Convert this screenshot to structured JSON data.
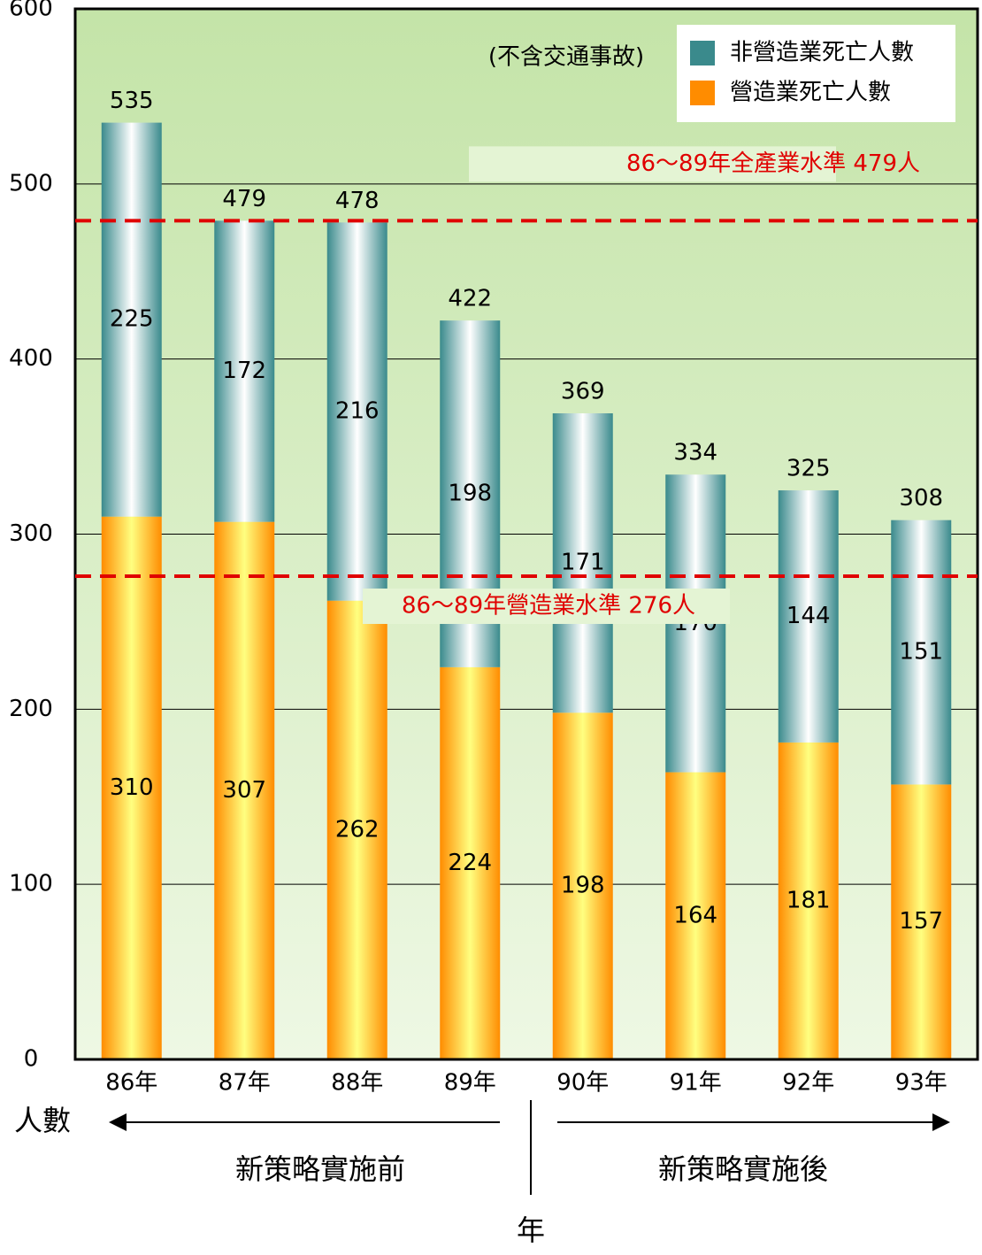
{
  "chart_data": {
    "type": "stacked_bar",
    "annotation": "(不含交通事故)",
    "y_label": "人數",
    "x_label": "年",
    "period_before": "新策略實施前",
    "period_after": "新策略實施後",
    "categories": [
      "86年",
      "87年",
      "88年",
      "89年",
      "90年",
      "91年",
      "92年",
      "93年"
    ],
    "series": [
      {
        "name": "營造業死亡人數",
        "color": "#ff8c00",
        "values": [
          310,
          307,
          262,
          224,
          198,
          164,
          181,
          157
        ]
      },
      {
        "name": "非營造業死亡人數",
        "color": "#3a8a8c",
        "values": [
          225,
          172,
          216,
          198,
          171,
          170,
          144,
          151
        ]
      }
    ],
    "totals": [
      535,
      479,
      478,
      422,
      369,
      334,
      325,
      308
    ],
    "reference_lines": [
      {
        "value": 479,
        "label": "86～89年全產業水準 479人",
        "color": "#e00000"
      },
      {
        "value": 276,
        "label": "86～89年營造業水準 276人",
        "color": "#e00000"
      }
    ],
    "ylim": [
      0,
      600
    ],
    "yticks": [
      0,
      100,
      200,
      300,
      400,
      500,
      600
    ],
    "grid": true
  }
}
